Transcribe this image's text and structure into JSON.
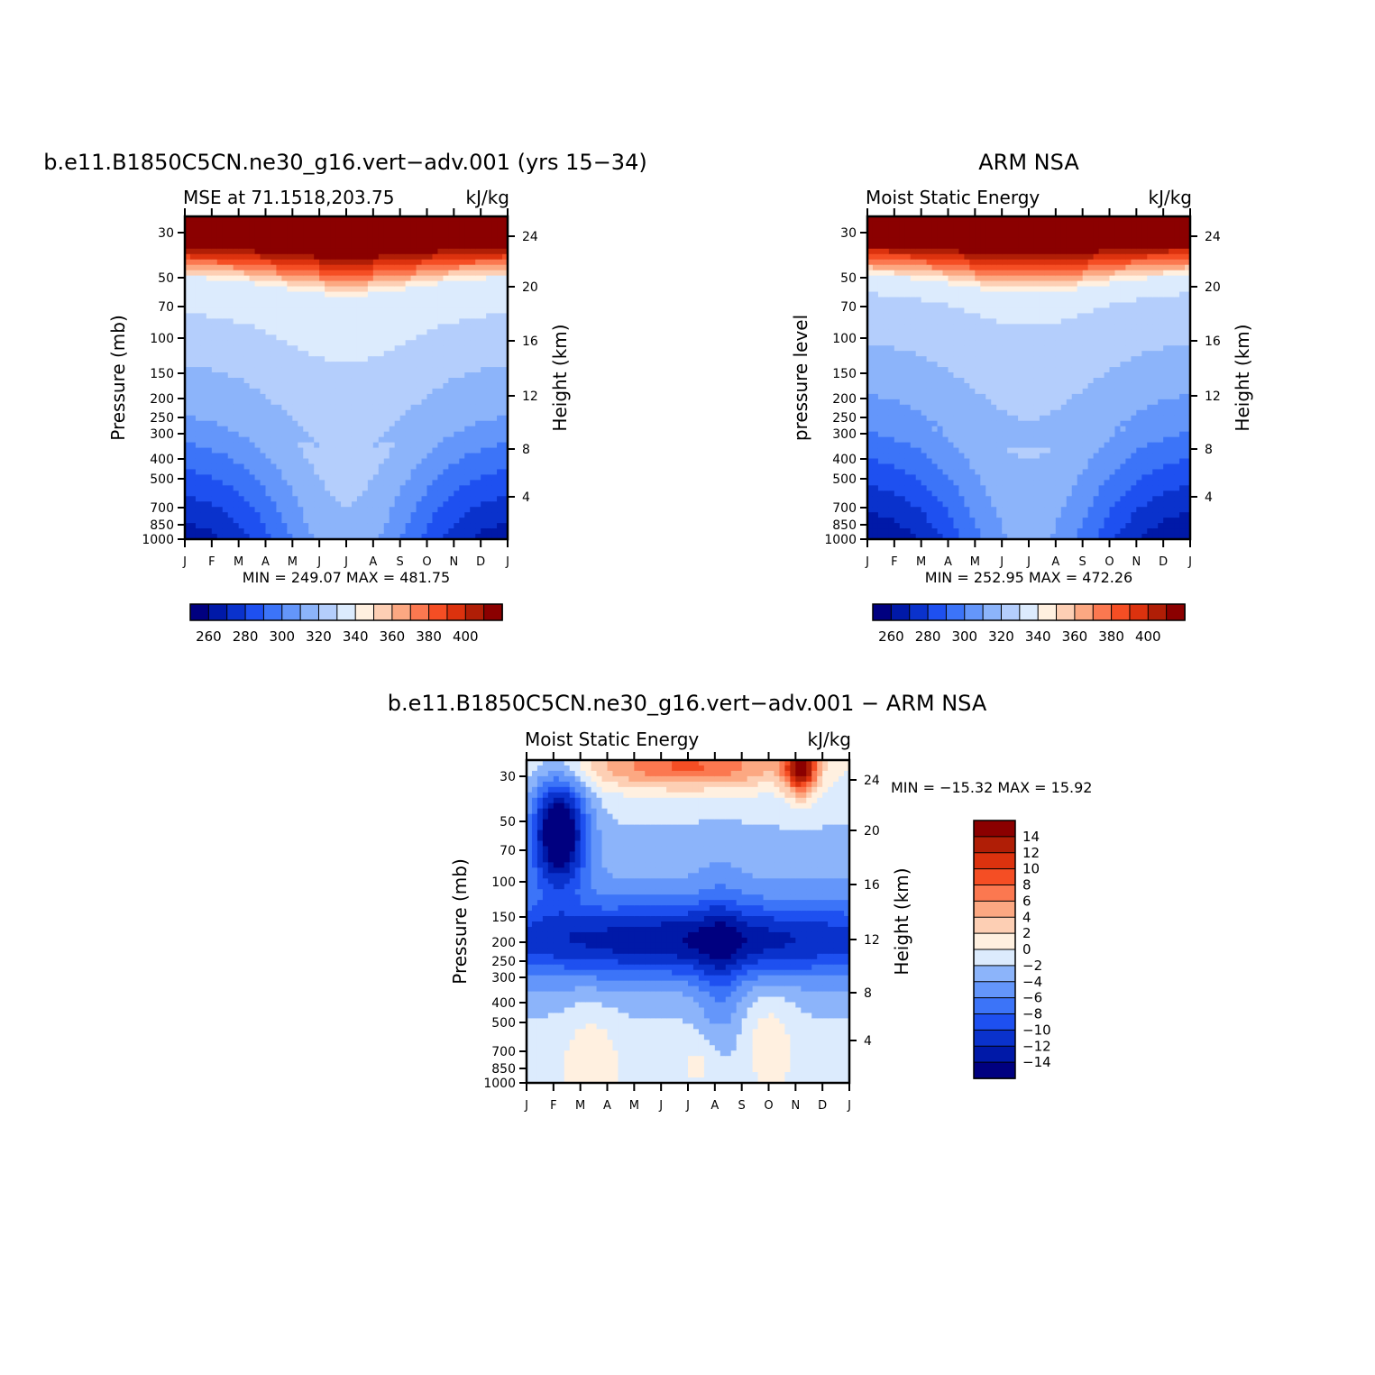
{
  "chart_data": [
    {
      "type": "heatmap",
      "title": "b.e11.B1850C5CN.ne30_g16.vert−adv.001 (yrs 15−34)",
      "left_subtitle": "MSE at 71.1518,203.75",
      "right_subtitle": "kJ/kg",
      "ylabel": "Pressure (mb)",
      "ylabel_right": "Height (km)",
      "stats": "MIN = 249.07 MAX = 481.75",
      "months": [
        "J",
        "F",
        "M",
        "A",
        "M",
        "J",
        "J",
        "A",
        "S",
        "O",
        "N",
        "D",
        "J"
      ],
      "pressure_ticks": [
        "30",
        "50",
        "70",
        "100",
        "150",
        "200",
        "250",
        "300",
        "400",
        "500",
        "700",
        "850",
        "1000"
      ],
      "height_ticks": [
        "24",
        "20",
        "16",
        "12",
        "8",
        "4"
      ],
      "contour_levels": [
        255,
        265,
        275,
        285,
        295,
        305,
        315,
        325,
        335,
        345,
        355,
        365,
        375,
        385,
        395,
        405
      ],
      "colorbar_labels": [
        "260",
        "280",
        "300",
        "320",
        "340",
        "360",
        "380",
        "400"
      ]
    },
    {
      "type": "heatmap",
      "title": "ARM NSA",
      "left_subtitle": "Moist Static Energy",
      "right_subtitle": "kJ/kg",
      "ylabel": "pressure level",
      "ylabel_right": "Height (km)",
      "stats": "MIN = 252.95 MAX = 472.26",
      "months": [
        "J",
        "F",
        "M",
        "A",
        "M",
        "J",
        "J",
        "A",
        "S",
        "O",
        "N",
        "D",
        "J"
      ],
      "pressure_ticks": [
        "30",
        "50",
        "70",
        "100",
        "150",
        "200",
        "250",
        "300",
        "400",
        "500",
        "700",
        "850",
        "1000"
      ],
      "height_ticks": [
        "24",
        "20",
        "16",
        "12",
        "8",
        "4"
      ],
      "contour_levels": [
        255,
        265,
        275,
        285,
        295,
        305,
        315,
        325,
        335,
        345,
        355,
        365,
        375,
        385,
        395,
        405
      ],
      "colorbar_labels": [
        "260",
        "280",
        "300",
        "320",
        "340",
        "360",
        "380",
        "400"
      ]
    },
    {
      "type": "heatmap",
      "title": "b.e11.B1850C5CN.ne30_g16.vert−adv.001 − ARM NSA",
      "left_subtitle": "Moist Static Energy",
      "right_subtitle": "kJ/kg",
      "ylabel": "Pressure (mb)",
      "ylabel_right": "Height (km)",
      "stats": "MIN = −15.32 MAX =   15.92",
      "months": [
        "J",
        "F",
        "M",
        "A",
        "M",
        "J",
        "J",
        "A",
        "S",
        "O",
        "N",
        "D",
        "J"
      ],
      "pressure_ticks": [
        "30",
        "50",
        "70",
        "100",
        "150",
        "200",
        "250",
        "300",
        "400",
        "500",
        "700",
        "850",
        "1000"
      ],
      "height_ticks": [
        "24",
        "20",
        "16",
        "12",
        "8",
        "4"
      ],
      "contour_levels": [
        -14,
        -12,
        -10,
        -8,
        -6,
        -4,
        -2,
        0,
        2,
        4,
        6,
        8,
        10,
        12,
        14
      ],
      "colorbar_labels": [
        "14",
        "12",
        "10",
        "8",
        "6",
        "4",
        "2",
        "0",
        "−2",
        "−4",
        "−6",
        "−8",
        "−10",
        "−12",
        "−14"
      ]
    }
  ]
}
